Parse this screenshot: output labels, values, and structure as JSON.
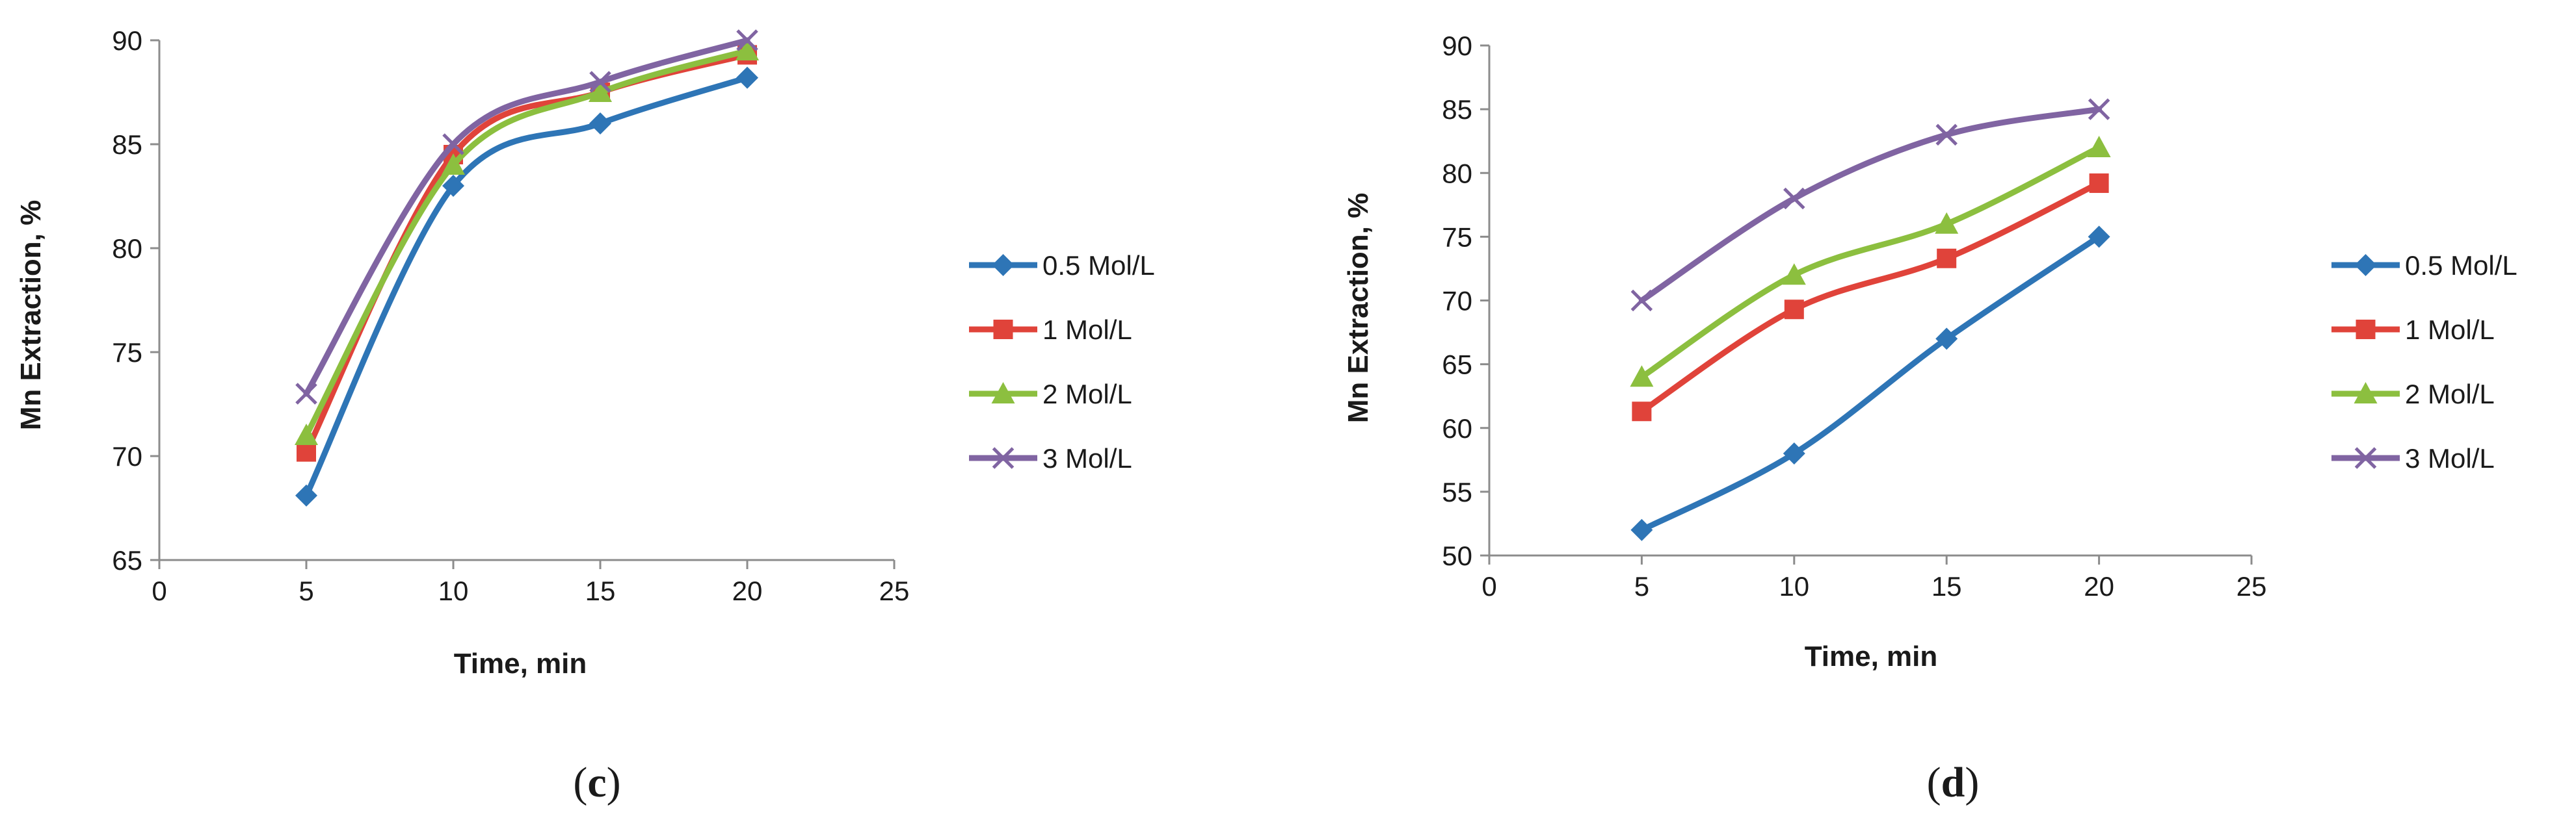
{
  "colors": {
    "0.5 Mol/L": "#2e75b6",
    "1 Mol/L": "#e0433a",
    "2 Mol/L": "#8cbf3f",
    "3 Mol/L": "#8064a2",
    "axis": "#8c8c8c"
  },
  "chart_data": [
    {
      "type": "line",
      "panel": "c",
      "panel_label": {
        "open": "(",
        "letter": "c",
        "close": ")"
      },
      "title": "",
      "xlabel": "Time, min",
      "ylabel": "Mn Extraction, %",
      "xlim": [
        0,
        25
      ],
      "ylim": [
        65,
        90
      ],
      "xticks": [
        "0",
        "5",
        "10",
        "15",
        "20",
        "25"
      ],
      "yticks": [
        "65",
        "70",
        "75",
        "80",
        "85",
        "90"
      ],
      "x": [
        5,
        10,
        15,
        20
      ],
      "legend_position": "right",
      "series": [
        {
          "name": "0.5 Mol/L",
          "marker": "diamond",
          "values": [
            68.1,
            83.0,
            86.0,
            88.2
          ]
        },
        {
          "name": "1 Mol/L",
          "marker": "square",
          "values": [
            70.2,
            84.5,
            87.5,
            89.3
          ]
        },
        {
          "name": "2 Mol/L",
          "marker": "triangle",
          "values": [
            71.0,
            84.0,
            87.5,
            89.5
          ]
        },
        {
          "name": "3 Mol/L",
          "marker": "x",
          "values": [
            73.0,
            85.0,
            88.0,
            90.0
          ]
        }
      ]
    },
    {
      "type": "line",
      "panel": "d",
      "panel_label": {
        "open": "(",
        "letter": "d",
        "close": ")"
      },
      "title": "",
      "xlabel": "Time, min",
      "ylabel": "Mn Extraction, %",
      "xlim": [
        0,
        25
      ],
      "ylim": [
        50,
        90
      ],
      "xticks": [
        "0",
        "5",
        "10",
        "15",
        "20",
        "25"
      ],
      "yticks": [
        "50",
        "55",
        "60",
        "65",
        "70",
        "75",
        "80",
        "85",
        "90"
      ],
      "x": [
        5,
        10,
        15,
        20
      ],
      "legend_position": "right",
      "series": [
        {
          "name": "0.5 Mol/L",
          "marker": "diamond",
          "values": [
            52.0,
            58.0,
            67.0,
            75.0
          ]
        },
        {
          "name": "1 Mol/L",
          "marker": "square",
          "values": [
            61.3,
            69.3,
            73.3,
            79.2
          ]
        },
        {
          "name": "2 Mol/L",
          "marker": "triangle",
          "values": [
            64.0,
            72.0,
            76.0,
            82.0
          ]
        },
        {
          "name": "3 Mol/L",
          "marker": "x",
          "values": [
            70.0,
            78.0,
            83.0,
            85.0
          ]
        }
      ]
    }
  ]
}
